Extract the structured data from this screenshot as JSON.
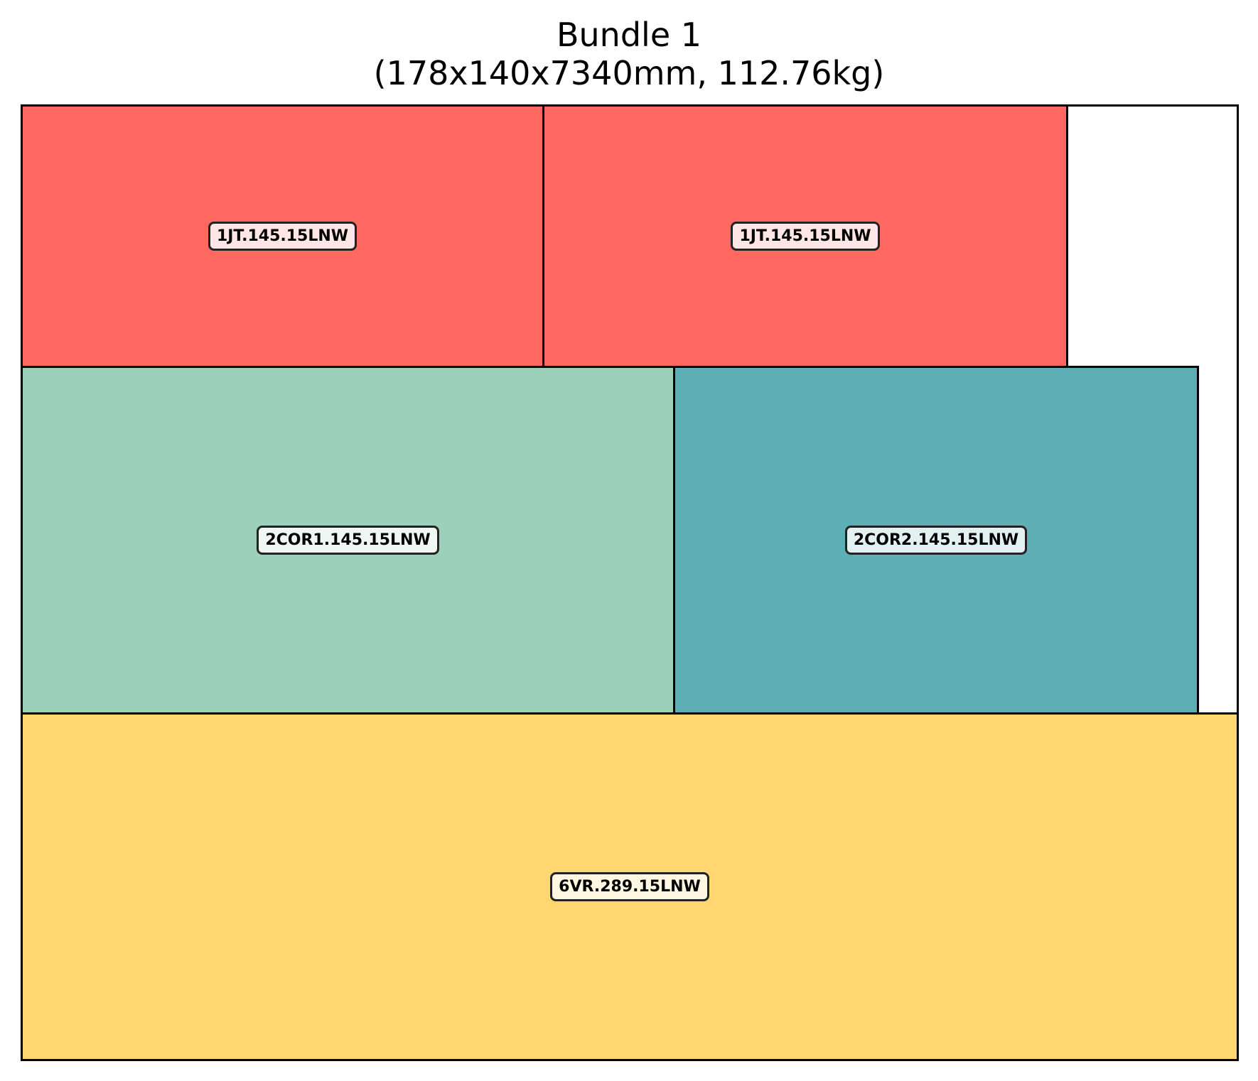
{
  "title": {
    "line1": "Bundle 1",
    "line2": "(178x140x7340mm, 112.76kg)"
  },
  "pieces": [
    {
      "id": "jt-left",
      "label": "1JT.145.15LNW",
      "color": "#ff6961",
      "label_bg": "#fde6e5"
    },
    {
      "id": "jt-right",
      "label": "1JT.145.15LNW",
      "color": "#ff6961",
      "label_bg": "#fde6e5"
    },
    {
      "id": "cor1",
      "label": "2COR1.145.15LNW",
      "color": "#9dd0ba",
      "label_bg": "#eef7f3"
    },
    {
      "id": "cor2",
      "label": "2COR2.145.15LNW",
      "color": "#5eaeb5",
      "label_bg": "#e2f0f1"
    },
    {
      "id": "vr",
      "label": "6VR.289.15LNW",
      "color": "#ffd670",
      "label_bg": "#fff7e2"
    }
  ]
}
